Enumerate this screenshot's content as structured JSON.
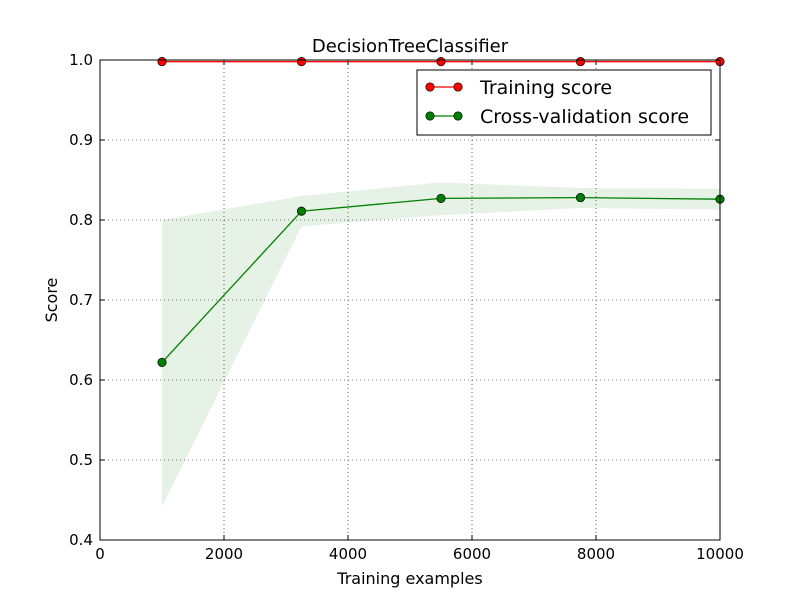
{
  "chart_data": {
    "type": "line",
    "title": "DecisionTreeClassifier",
    "xlabel": "Training examples",
    "ylabel": "Score",
    "xlim": [
      0,
      10000
    ],
    "ylim": [
      0.4,
      1.0
    ],
    "xticks": [
      0,
      2000,
      4000,
      6000,
      8000,
      10000
    ],
    "yticks": [
      0.4,
      0.5,
      0.6,
      0.7,
      0.8,
      0.9,
      1.0
    ],
    "xtick_labels": [
      "0",
      "2000",
      "4000",
      "6000",
      "8000",
      "10000"
    ],
    "ytick_labels": [
      "0.4",
      "0.5",
      "0.6",
      "0.7",
      "0.8",
      "0.9",
      "1.0"
    ],
    "grid": true,
    "legend_position": "top-right",
    "x": [
      1000,
      3250,
      5500,
      7750,
      10000
    ],
    "series": [
      {
        "name": "Training score",
        "color": "#ff0000",
        "values": [
          0.998,
          0.998,
          0.998,
          0.998,
          0.998
        ],
        "band_upper": [
          1.0,
          1.0,
          1.0,
          1.0,
          1.0
        ],
        "band_lower": [
          0.996,
          0.996,
          0.996,
          0.996,
          0.996
        ]
      },
      {
        "name": "Cross-validation score",
        "color": "#008000",
        "values": [
          0.622,
          0.811,
          0.827,
          0.828,
          0.826
        ],
        "band_upper": [
          0.8,
          0.83,
          0.847,
          0.84,
          0.839
        ],
        "band_lower": [
          0.442,
          0.792,
          0.806,
          0.815,
          0.813
        ]
      }
    ]
  }
}
